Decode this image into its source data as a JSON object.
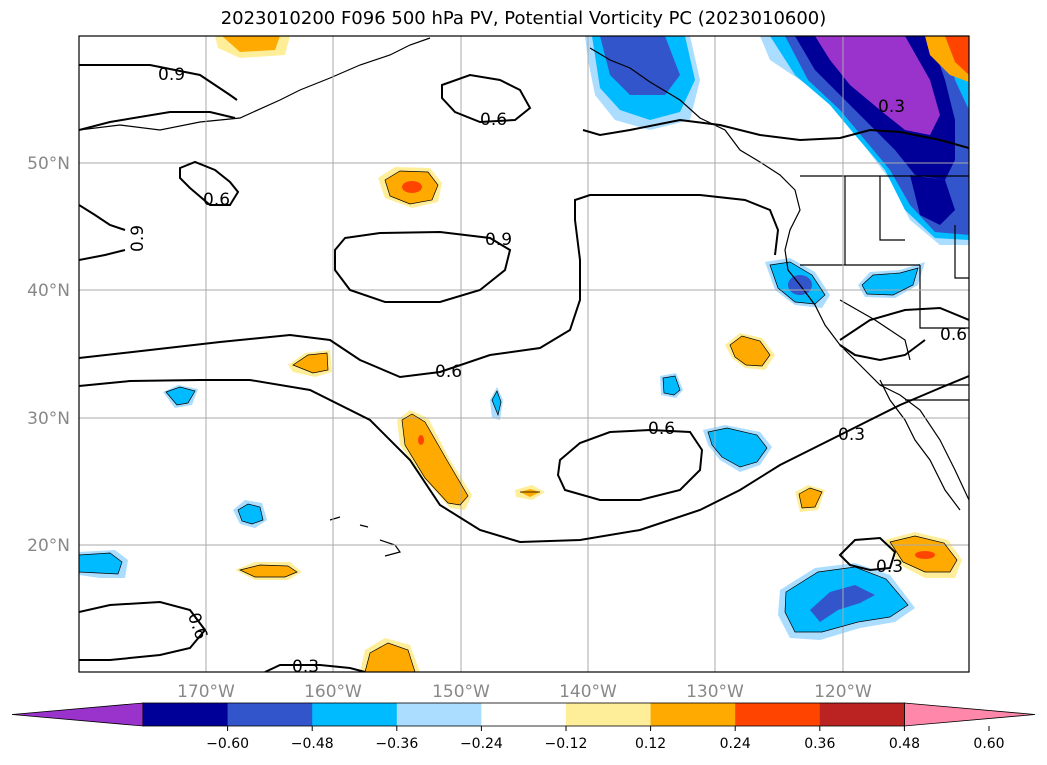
{
  "title": "2023010200 F096 500 hPa PV, Potential Vorticity PC (2023010600)",
  "map": {
    "lat_labels": [
      "50°N",
      "40°N",
      "30°N",
      "20°N"
    ],
    "lon_labels": [
      "170°W",
      "160°W",
      "150°W",
      "140°W",
      "130°W",
      "120°W"
    ],
    "contour_labels": [
      "0.9",
      "0.6",
      "0.9",
      "0.6",
      "0.9",
      "0.6",
      "0.6",
      "0.6",
      "0.3",
      "0.3",
      "0.3",
      "0.6",
      "0.3"
    ]
  },
  "colorbar": {
    "ticks": [
      "−0.60",
      "−0.48",
      "−0.36",
      "−0.24",
      "−0.12",
      "0.12",
      "0.24",
      "0.36",
      "0.48",
      "0.60"
    ],
    "colors": [
      "#9933cc",
      "#000099",
      "#3355cc",
      "#00bbff",
      "#aaddff",
      "#ffffff",
      "#ffee99",
      "#ffaa00",
      "#ff4400",
      "#bb2222",
      "#ff88aa"
    ]
  }
}
